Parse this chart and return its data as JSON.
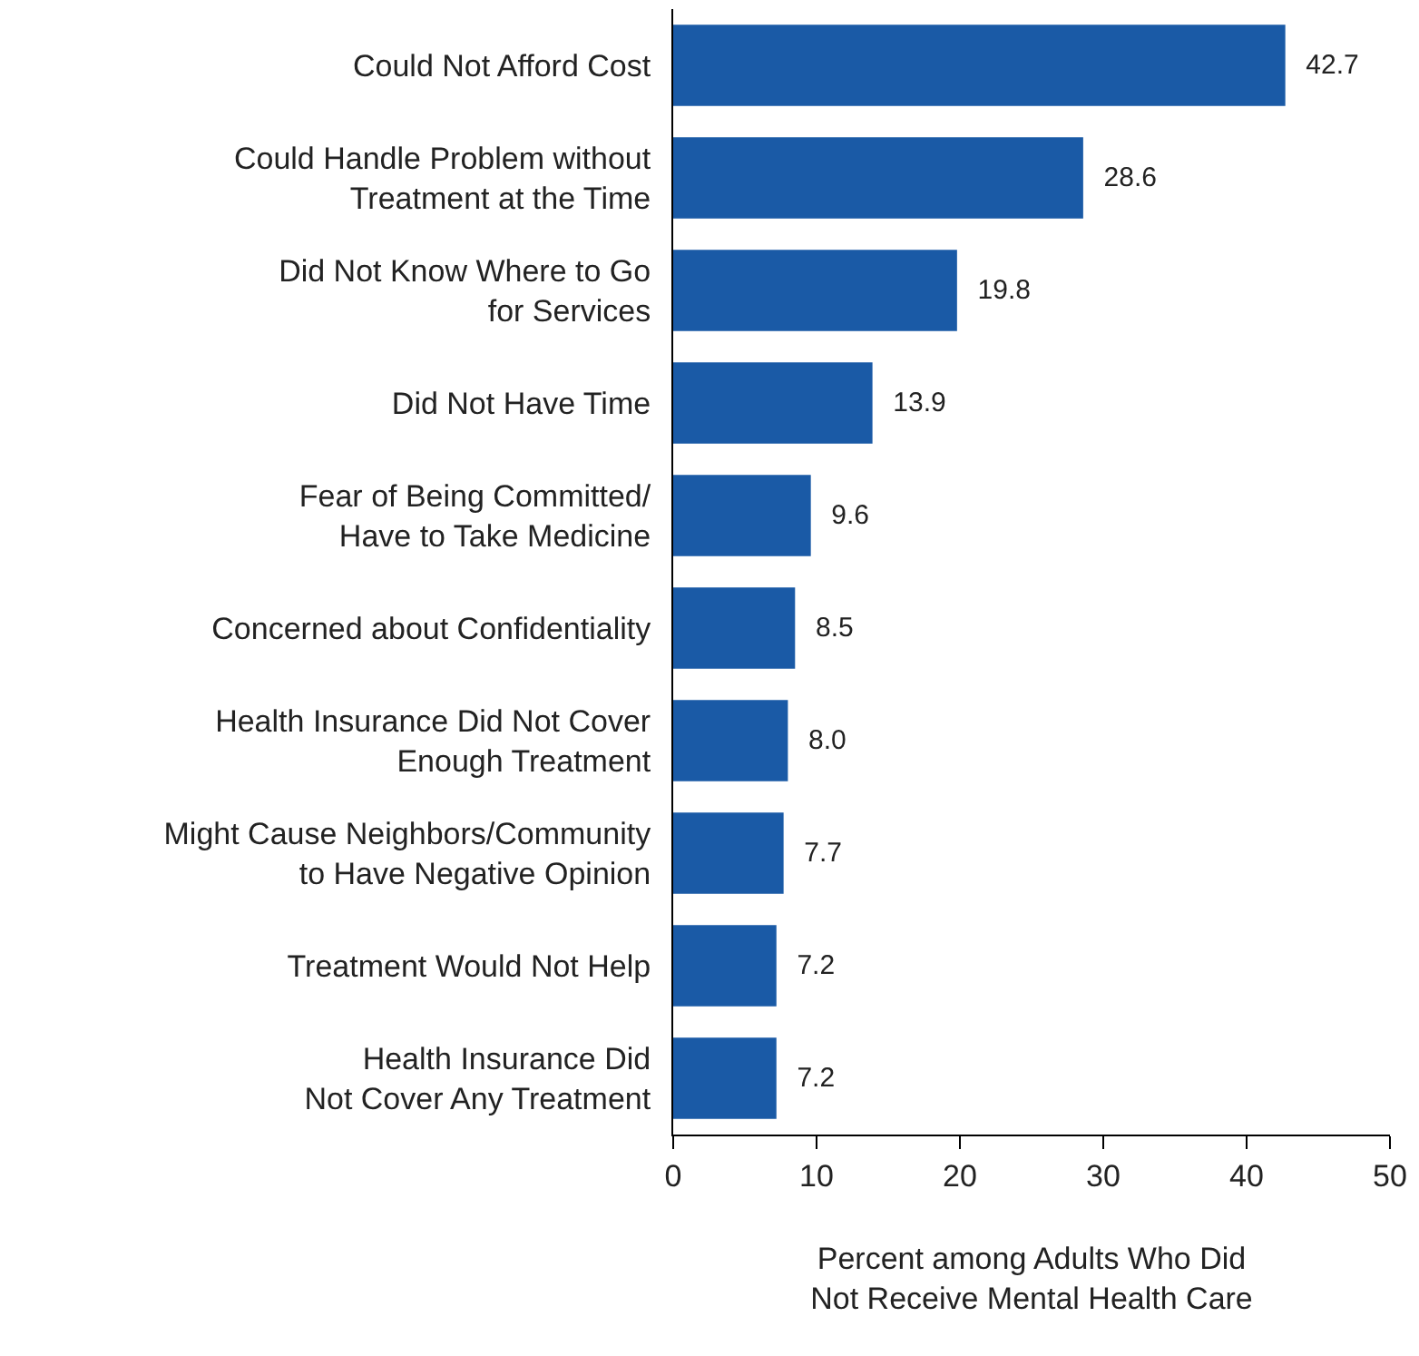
{
  "chart_data": {
    "type": "bar",
    "orientation": "horizontal",
    "categories": [
      "Could Not Afford Cost",
      "Could Handle Problem without\nTreatment at the Time",
      "Did Not Know Where to Go\nfor Services",
      "Did Not Have Time",
      "Fear of Being Committed/\nHave to Take Medicine",
      "Concerned about Confidentiality",
      "Health Insurance Did Not Cover\nEnough Treatment",
      "Might Cause Neighbors/Community\nto Have Negative Opinion",
      "Treatment Would Not Help",
      "Health Insurance Did\nNot Cover Any Treatment"
    ],
    "values": [
      42.7,
      28.6,
      19.8,
      13.9,
      9.6,
      8.5,
      8.0,
      7.7,
      7.2,
      7.2
    ],
    "value_labels": [
      "42.7",
      "28.6",
      "19.8",
      "13.9",
      "9.6",
      "8.5",
      "8.0",
      "7.7",
      "7.2",
      "7.2"
    ],
    "color": "#1a5aa6",
    "xlabel": "Percent among Adults Who Did\nNot Receive Mental Health Care",
    "xlim": [
      0,
      50
    ],
    "xticks": [
      0,
      10,
      20,
      30,
      40,
      50
    ],
    "grid": false
  }
}
